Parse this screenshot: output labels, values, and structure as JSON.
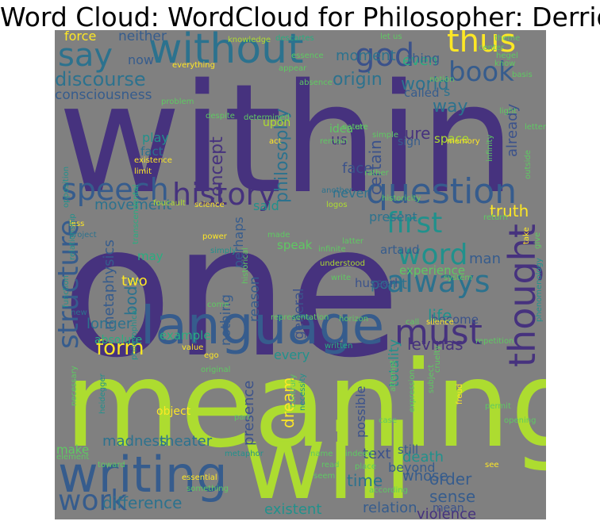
{
  "title": "Word Cloud:  WordCloud for  Philosopher: Derrida",
  "colors": {
    "background": "#808080",
    "palette": [
      "#46327e",
      "#3b528b",
      "#365c8d",
      "#2c728e",
      "#21918c",
      "#28ae80",
      "#5ec962",
      "#addc30",
      "#fde725"
    ]
  },
  "words": [
    "within",
    "one",
    "meaning",
    "will",
    "language",
    "writing",
    "history",
    "question",
    "speech",
    "must",
    "thought",
    "without",
    "say",
    "god",
    "thus",
    "book",
    "word",
    "first",
    "always",
    "structure",
    "work",
    "form",
    "discourse",
    "consciousness",
    "concept",
    "philosophy",
    "origin",
    "world",
    "way",
    "certain",
    "already",
    "pure",
    "truth",
    "movement",
    "metaphysics",
    "body",
    "two",
    "longer",
    "nothing",
    "reason",
    "general",
    "totality",
    "levinas",
    "presence",
    "dream",
    "possible",
    "madness",
    "theater",
    "difference",
    "order",
    "sense",
    "time",
    "death",
    "relation",
    "violence",
    "existent",
    "whose",
    "beyond",
    "text",
    "even",
    "moment",
    "neither",
    "force",
    "now",
    "thing",
    "man",
    "point",
    "life",
    "experience",
    "present",
    "face",
    "us",
    "never",
    "perhaps",
    "play",
    "fact",
    "speak",
    "said",
    "may",
    "upon",
    "called",
    "example",
    "every",
    "absolute",
    "object",
    "make",
    "mean",
    "become",
    "husserl",
    "artaud",
    "idea",
    "sign",
    "space",
    "still",
    "s",
    "knowledge",
    "descartes",
    "let us",
    "theme",
    "center",
    "essence",
    "appear",
    "absence",
    "hegel",
    "notion",
    "know",
    "everything",
    "letter",
    "basis",
    "remain",
    "problem",
    "light",
    "etc",
    "simple",
    "nature",
    "memory",
    "infinity",
    "act",
    "existence",
    "limit",
    "rather",
    "outside",
    "opposition",
    "another",
    "foucault",
    "science",
    "logos",
    "return",
    "less",
    "project",
    "made",
    "take",
    "give",
    "power",
    "simply",
    "infinite",
    "understood",
    "latter",
    "relationship",
    "system",
    "write",
    "function",
    "come",
    "new",
    "call",
    "silence",
    "historical",
    "representation",
    "horizon",
    "phenomenology",
    "repetition",
    "value",
    "ego",
    "written",
    "philosophical",
    "original",
    "attempt",
    "necessity",
    "expression",
    "cruelty",
    "subject",
    "freud",
    "necessary",
    "heidegger",
    "part",
    "contrary",
    "case",
    "permit",
    "opening",
    "element",
    "toward",
    "metaphor",
    "indeed",
    "name",
    "see",
    "read",
    "place",
    "seem",
    "according",
    "essential",
    "something",
    "despite",
    "determined",
    "transcendental",
    "historicity"
  ]
}
